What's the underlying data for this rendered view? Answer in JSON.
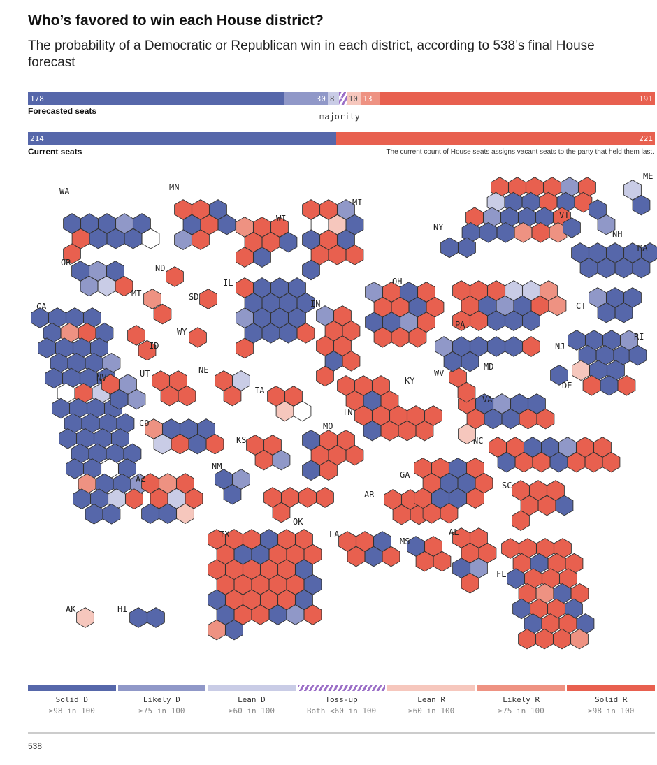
{
  "title": "Who’s favored to win each House district?",
  "subtitle": "The probability of a Democratic or Republican win in each district, according to 538’s final House forecast",
  "colors": {
    "D": "#5667aa",
    "d": "#9098c8",
    "l": "#c9cce6",
    "t": "#ffffff",
    "r": "#f6c7bd",
    "k": "#ee9282",
    "R": "#e8604f",
    "toss_stripe": "#9b6fc7"
  },
  "forecast_bar": {
    "label": "Forecasted seats",
    "segments": [
      {
        "key": "D",
        "value": 178,
        "text": "178"
      },
      {
        "key": "d",
        "value": 30,
        "text": "30"
      },
      {
        "key": "l",
        "value": 8,
        "text": "8"
      },
      {
        "key": "t",
        "value": 5,
        "text": "5"
      },
      {
        "key": "r",
        "value": 10,
        "text": "10"
      },
      {
        "key": "k",
        "value": 13,
        "text": "13"
      },
      {
        "key": "R",
        "value": 191,
        "text": "191"
      }
    ]
  },
  "current_bar": {
    "label": "Current seats",
    "segments": [
      {
        "key": "D",
        "value": 214,
        "text": "214"
      },
      {
        "key": "R",
        "value": 221,
        "text": "221"
      }
    ]
  },
  "majority_label": "majority",
  "majority_seats": 218,
  "note": "The current count of House seats assigns vacant seats to the party that held them last.",
  "chart_data": {
    "type": "hex-map",
    "rating_codes": {
      "D": "Solid D",
      "d": "Likely D",
      "l": "Lean D",
      "t": "Toss-up",
      "r": "Lean R",
      "k": "Likely R",
      "R": "Solid R"
    },
    "states": [
      {
        "abbr": "WA",
        "ratings": "DDDdDRDDDtR"
      },
      {
        "abbr": "OR",
        "ratings": "DdDdlR"
      },
      {
        "abbr": "CA",
        "ratings": "DDDDDkRDDDDDDDDdDDDDtRlDDDDDDDDDDDDDDDDDDDtDkDDdDDlRDD"
      },
      {
        "abbr": "NV",
        "ratings": "RdDd"
      },
      {
        "abbr": "ID",
        "ratings": "RR"
      },
      {
        "abbr": "MT",
        "ratings": "kR"
      },
      {
        "abbr": "WY",
        "ratings": "R"
      },
      {
        "abbr": "UT",
        "ratings": "RRRR"
      },
      {
        "abbr": "CO",
        "ratings": "kDDDlRDR"
      },
      {
        "abbr": "AZ",
        "ratings": "RkRRlRDDr"
      },
      {
        "abbr": "NM",
        "ratings": "DdD"
      },
      {
        "abbr": "ND",
        "ratings": "R"
      },
      {
        "abbr": "SD",
        "ratings": "R"
      },
      {
        "abbr": "NE",
        "ratings": "RlR"
      },
      {
        "abbr": "KS",
        "ratings": "RRRd"
      },
      {
        "abbr": "OK",
        "ratings": "RRRRR"
      },
      {
        "abbr": "TX",
        "ratings": "RRRDRRRDDRRRRRRRRDRRRRRDDRRRRDDRRDdRkD"
      },
      {
        "abbr": "MN",
        "ratings": "RRDDRDdR"
      },
      {
        "abbr": "IA",
        "ratings": "RRrt"
      },
      {
        "abbr": "MO",
        "ratings": "DRRRRRDR"
      },
      {
        "abbr": "AR",
        "ratings": "RRRR"
      },
      {
        "abbr": "LA",
        "ratings": "RRDRDR"
      },
      {
        "abbr": "WI",
        "ratings": "kRRRRDRD"
      },
      {
        "abbr": "IL",
        "ratings": "RDDDDDDDdDDDDDDRR"
      },
      {
        "abbr": "MI",
        "ratings": "RRdtrDDRDRRRD"
      },
      {
        "abbr": "IN",
        "ratings": "dRRRRRDRR"
      },
      {
        "abbr": "OH",
        "ratings": "dRDRRRDRDDdRRRR"
      },
      {
        "abbr": "KY",
        "ratings": "RRRRDR"
      },
      {
        "abbr": "TN",
        "ratings": "RRRRRDRRR"
      },
      {
        "abbr": "MS",
        "ratings": "DRRR"
      },
      {
        "abbr": "AL",
        "ratings": "RRRRDdR"
      },
      {
        "abbr": "GA",
        "ratings": "RRDRRDDRRDDRRR"
      },
      {
        "abbr": "FL",
        "ratings": "RRRRRDRRDRRRRkDRDRRDDRRDRRRk"
      },
      {
        "abbr": "SC",
        "ratings": "RRRRRDR"
      },
      {
        "abbr": "NC",
        "ratings": "RRDDdRRDRRDRRR"
      },
      {
        "abbr": "VA",
        "ratings": "RDdDDRDDRRr"
      },
      {
        "abbr": "WV",
        "ratings": "RR"
      },
      {
        "abbr": "MD",
        "ratings": "dDDDDRDD"
      },
      {
        "abbr": "PA",
        "ratings": "RRRllkRDdDRkRRDDD"
      },
      {
        "abbr": "NY",
        "ratings": "RRRRdRlDDRDRRdDDDRDDDkRkDD"
      },
      {
        "abbr": "NJ",
        "ratings": "DDDDDDrDDRDR"
      },
      {
        "abbr": "DE",
        "ratings": "D"
      },
      {
        "abbr": "CT",
        "ratings": "dDDDD"
      },
      {
        "abbr": "RI",
        "ratings": "dD"
      },
      {
        "abbr": "MA",
        "ratings": "DDDDDDDDD"
      },
      {
        "abbr": "VT",
        "ratings": "D"
      },
      {
        "abbr": "NH",
        "ratings": "Dd"
      },
      {
        "abbr": "ME",
        "ratings": "lD"
      },
      {
        "abbr": "AK",
        "ratings": "r"
      },
      {
        "abbr": "HI",
        "ratings": "DD"
      }
    ]
  },
  "legend": [
    {
      "key": "D",
      "name": "Solid D",
      "range": "≥98 in 100"
    },
    {
      "key": "d",
      "name": "Likely D",
      "range": "≥75 in 100"
    },
    {
      "key": "l",
      "name": "Lean D",
      "range": "≥60 in 100"
    },
    {
      "key": "t",
      "name": "Toss-up",
      "range": "Both <60 in 100"
    },
    {
      "key": "r",
      "name": "Lean R",
      "range": "≥60 in 100"
    },
    {
      "key": "k",
      "name": "Likely R",
      "range": "≥75 in 100"
    },
    {
      "key": "R",
      "name": "Solid R",
      "range": "≥98 in 100"
    }
  ],
  "source": "538"
}
